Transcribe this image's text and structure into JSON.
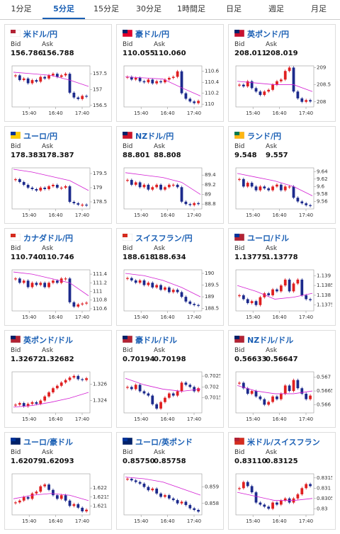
{
  "tabs": [
    "1分足",
    "5分足",
    "15分足",
    "30分足",
    "1時間足",
    "日足",
    "週足",
    "月足"
  ],
  "active_tab": 1,
  "labels": {
    "bid": "Bid",
    "ask": "Ask"
  },
  "xticks": [
    "15:40",
    "16:40",
    "17:40"
  ],
  "cards": [
    {
      "pair": "米ドル/円",
      "bid": "156.786",
      "ask": "156.788",
      "chart": {
        "ylim": [
          156.45,
          157.75
        ],
        "yticks": [
          157.5,
          157,
          156.5
        ],
        "closes": [
          157.45,
          157.3,
          157.35,
          157.2,
          157.3,
          157.25,
          157.4,
          157.35,
          157.45,
          157.5,
          157.4,
          157.45,
          157.5,
          156.9,
          156.75,
          156.7,
          156.8,
          156.78
        ],
        "ma": [
          157.55,
          157.5,
          157.45,
          157.3,
          157.1
        ]
      }
    },
    {
      "pair": "豪ドル/円",
      "bid": "110.055",
      "ask": "110.060",
      "chart": {
        "ylim": [
          109.95,
          110.7
        ],
        "yticks": [
          110.6,
          110.4,
          110.2,
          110
        ],
        "closes": [
          110.5,
          110.45,
          110.48,
          110.42,
          110.4,
          110.45,
          110.38,
          110.42,
          110.4,
          110.45,
          110.48,
          110.5,
          110.6,
          110.2,
          110.1,
          110.05,
          110.02,
          110.06
        ],
        "ma": [
          110.5,
          110.48,
          110.46,
          110.3,
          110.15
        ]
      }
    },
    {
      "pair": "英ポンド/円",
      "bid": "208.011",
      "ask": "208.019",
      "chart": {
        "ylim": [
          207.85,
          209.05
        ],
        "yticks": [
          209,
          208.5,
          208
        ],
        "closes": [
          208.5,
          208.45,
          208.6,
          208.4,
          208.3,
          208.2,
          208.3,
          208.35,
          208.5,
          208.6,
          208.65,
          208.9,
          209,
          208.3,
          208.1,
          208.0,
          208.05,
          208.01
        ],
        "ma": [
          208.6,
          208.55,
          208.5,
          208.5,
          208.3
        ]
      }
    },
    {
      "pair": "ユーロ/円",
      "bid": "178.383",
      "ask": "178.387",
      "chart": {
        "ylim": [
          178.25,
          179.7
        ],
        "yticks": [
          179.5,
          179,
          178.5
        ],
        "closes": [
          179.3,
          179.2,
          179.1,
          179.0,
          178.95,
          178.9,
          179.0,
          178.95,
          179.05,
          179.1,
          179.0,
          179.0,
          179.05,
          178.5,
          178.45,
          178.4,
          178.4,
          178.38
        ],
        "ma": [
          179.65,
          179.55,
          179.4,
          179.25,
          178.9
        ]
      }
    },
    {
      "pair": "NZドル/円",
      "bid": "88.801",
      "ask": "88.808",
      "chart": {
        "ylim": [
          88.7,
          89.55
        ],
        "yticks": [
          89.4,
          89.2,
          89,
          88.8
        ],
        "closes": [
          89.3,
          89.2,
          89.25,
          89.15,
          89.2,
          89.1,
          89.15,
          89.2,
          89.1,
          89.15,
          89.2,
          89.2,
          89.15,
          88.85,
          88.8,
          88.78,
          88.82,
          88.8
        ],
        "ma": [
          89.45,
          89.4,
          89.35,
          89.25,
          89.0
        ]
      }
    },
    {
      "pair": "ランド/円",
      "bid": "9.548",
      "ask": "9.557",
      "chart": {
        "ylim": [
          9.54,
          9.65
        ],
        "yticks": [
          9.64,
          9.62,
          9.6,
          9.58,
          9.56
        ],
        "closes": [
          9.62,
          9.6,
          9.61,
          9.6,
          9.59,
          9.6,
          9.595,
          9.59,
          9.6,
          9.605,
          9.59,
          9.6,
          9.6,
          9.57,
          9.56,
          9.555,
          9.55,
          9.548
        ],
        "ma": [
          9.635,
          9.625,
          9.615,
          9.6,
          9.575
        ]
      }
    },
    {
      "pair": "カナダドル/円",
      "bid": "110.740",
      "ask": "110.746",
      "chart": {
        "ylim": [
          110.55,
          111.5
        ],
        "yticks": [
          111.4,
          111.2,
          111,
          110.8,
          110.6
        ],
        "closes": [
          111.3,
          111.2,
          111.25,
          111.1,
          111.2,
          111.15,
          111.2,
          111.1,
          111.2,
          111.25,
          111.2,
          111.3,
          111.3,
          110.75,
          110.65,
          110.7,
          110.72,
          110.74
        ],
        "ma": [
          111.45,
          111.4,
          111.3,
          111.2,
          110.9
        ]
      }
    },
    {
      "pair": "スイスフラン/円",
      "bid": "188.618",
      "ask": "188.634",
      "chart": {
        "ylim": [
          188.4,
          190.15
        ],
        "yticks": [
          190,
          189.5,
          189,
          188.5
        ],
        "closes": [
          189.8,
          189.7,
          189.6,
          189.7,
          189.5,
          189.6,
          189.4,
          189.5,
          189.3,
          189.4,
          189.2,
          189.3,
          189.2,
          189.0,
          188.8,
          188.7,
          188.65,
          188.62
        ],
        "ma": [
          190.0,
          189.9,
          189.7,
          189.4,
          189.0
        ]
      }
    },
    {
      "pair": "ユーロ/ドル",
      "bid": "1.13775",
      "ask": "1.13778",
      "chart": {
        "ylim": [
          1.1372,
          1.1393
        ],
        "yticks": [
          1.139,
          1.1385,
          1.138,
          1.1375
        ],
        "closes": [
          1.138,
          1.1378,
          1.1376,
          1.1377,
          1.1375,
          1.1379,
          1.1381,
          1.138,
          1.1383,
          1.1382,
          1.1385,
          1.1388,
          1.1382,
          1.1386,
          1.1388,
          1.138,
          1.1378,
          1.13775
        ],
        "ma": [
          1.1385,
          1.1382,
          1.1378,
          1.1379,
          1.1381
        ]
      }
    },
    {
      "pair": "英ポンド/ドル",
      "bid": "1.32672",
      "ask": "1.32682",
      "chart": {
        "ylim": [
          1.3225,
          1.3275
        ],
        "yticks": [
          1.326,
          1.324
        ],
        "closes": [
          1.3235,
          1.3237,
          1.3233,
          1.3236,
          1.3238,
          1.3236,
          1.324,
          1.3245,
          1.325,
          1.3255,
          1.3258,
          1.3262,
          1.3265,
          1.3268,
          1.327,
          1.3266,
          1.3265,
          1.32672
        ],
        "ma": [
          1.3232,
          1.3234,
          1.3238,
          1.3243,
          1.325
        ]
      }
    },
    {
      "pair": "豪ドル/ドル",
      "bid": "0.70194",
      "ask": "0.70198",
      "chart": {
        "ylim": [
          0.7008,
          0.7027
        ],
        "yticks": [
          0.7025,
          0.702,
          0.7015
        ],
        "closes": [
          0.702,
          0.7019,
          0.7021,
          0.7018,
          0.7017,
          0.7016,
          0.7012,
          0.701,
          0.7013,
          0.7015,
          0.7017,
          0.7016,
          0.7018,
          0.7022,
          0.7021,
          0.702,
          0.7018,
          0.70194
        ],
        "ma": [
          0.7024,
          0.7021,
          0.7019,
          0.7018,
          0.7019
        ]
      }
    },
    {
      "pair": "NZドル/ドル",
      "bid": "0.56633",
      "ask": "0.56647",
      "chart": {
        "ylim": [
          0.5657,
          0.5672
        ],
        "yticks": [
          0.567,
          0.5665,
          0.566
        ],
        "closes": [
          0.5668,
          0.5666,
          0.5664,
          0.5665,
          0.5663,
          0.5662,
          0.566,
          0.5661,
          0.5663,
          0.5662,
          0.5664,
          0.5667,
          0.5665,
          0.5669,
          0.5666,
          0.5664,
          0.5662,
          0.56633
        ],
        "ma": [
          0.5667,
          0.5665,
          0.5664,
          0.5664,
          0.5665
        ]
      }
    },
    {
      "pair": "ユーロ/豪ドル",
      "bid": "1.62079",
      "ask": "1.62093",
      "chart": {
        "ylim": [
          1.6205,
          1.6228
        ],
        "yticks": [
          1.622,
          1.6215,
          1.621
        ],
        "closes": [
          1.6212,
          1.6213,
          1.6215,
          1.6214,
          1.6217,
          1.6218,
          1.6221,
          1.6222,
          1.6219,
          1.6216,
          1.6214,
          1.6216,
          1.6213,
          1.621,
          1.6211,
          1.6209,
          1.6207,
          1.62079
        ],
        "ma": [
          1.6214,
          1.6216,
          1.6217,
          1.6216,
          1.6213
        ]
      }
    },
    {
      "pair": "ユーロ/英ポンド",
      "bid": "0.85750",
      "ask": "0.85758",
      "chart": {
        "ylim": [
          0.8573,
          0.8598
        ],
        "yticks": [
          0.859,
          0.858
        ],
        "closes": [
          0.8595,
          0.8594,
          0.8593,
          0.8592,
          0.859,
          0.8588,
          0.8589,
          0.8586,
          0.8584,
          0.8585,
          0.8583,
          0.8582,
          0.858,
          0.8581,
          0.8579,
          0.8577,
          0.8576,
          0.8575
        ],
        "ma": [
          0.8596,
          0.8595,
          0.8593,
          0.8589,
          0.8585
        ]
      }
    },
    {
      "pair": "米ドル/スイスフラン",
      "bid": "0.83110",
      "ask": "0.83125",
      "chart": {
        "ylim": [
          0.8297,
          0.8317
        ],
        "yticks": [
          0.8315,
          0.831,
          0.8305,
          0.83
        ],
        "closes": [
          0.831,
          0.8313,
          0.8311,
          0.8308,
          0.8303,
          0.8302,
          0.8301,
          0.83,
          0.8303,
          0.8302,
          0.8304,
          0.8305,
          0.8303,
          0.8305,
          0.8307,
          0.831,
          0.8312,
          0.8311
        ],
        "ma": [
          0.8308,
          0.8306,
          0.8304,
          0.8304,
          0.8305
        ]
      }
    }
  ]
}
